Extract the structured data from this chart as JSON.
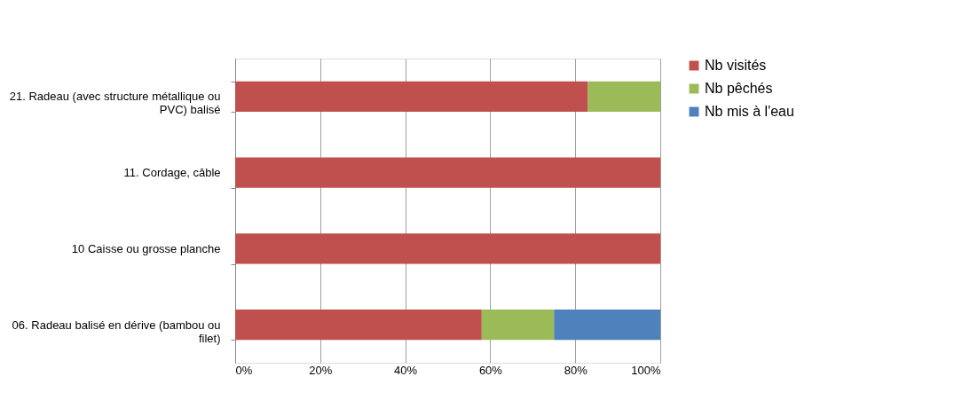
{
  "chart_data": {
    "type": "bar",
    "orientation": "horizontal",
    "stacked": true,
    "categories": [
      "21. Radeau (avec structure métallique ou PVC) balisé",
      "11. Cordage, câble",
      "10  Caisse ou grosse planche",
      "06. Radeau balisé en dérive (bambou ou filet)"
    ],
    "series": [
      {
        "name": "Nb visités",
        "color": "#c0504d",
        "values": [
          83,
          100,
          100,
          58
        ]
      },
      {
        "name": "Nb pêchés",
        "color": "#9bbb59",
        "values": [
          17,
          0,
          0,
          17
        ]
      },
      {
        "name": "Nb mis à l'eau",
        "color": "#4f81bd",
        "values": [
          0,
          0,
          0,
          25
        ]
      }
    ],
    "xlim": [
      0,
      100
    ],
    "xticks": [
      {
        "value": 0,
        "label": "0%"
      },
      {
        "value": 20,
        "label": "20%"
      },
      {
        "value": 40,
        "label": "40%"
      },
      {
        "value": 60,
        "label": "60%"
      },
      {
        "value": 80,
        "label": "80%"
      },
      {
        "value": 100,
        "label": "100%"
      }
    ],
    "grid": "x",
    "legend": "right"
  }
}
